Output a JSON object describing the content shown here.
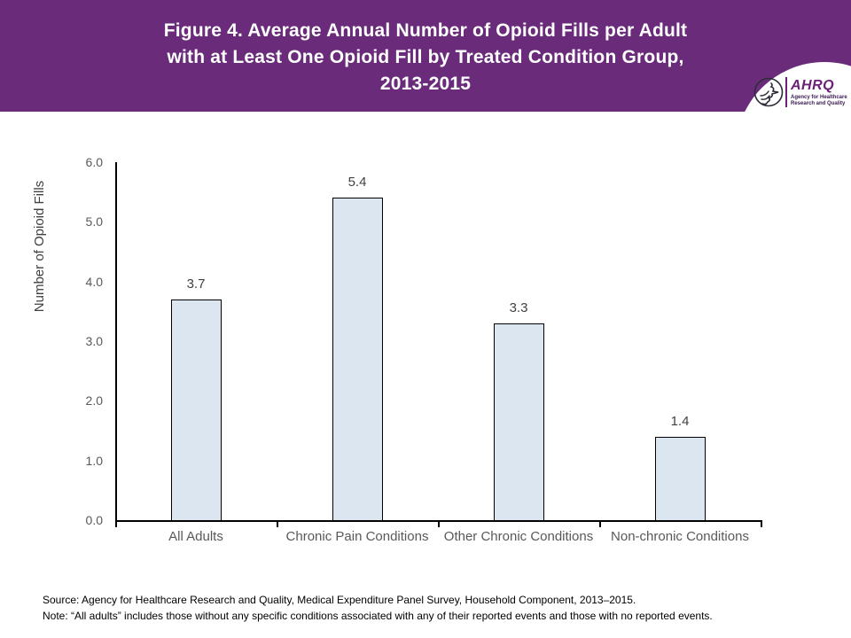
{
  "header": {
    "title": "Figure 4. Average Annual Number of Opioid Fills per Adult\nwith at Least One Opioid Fill by Treated Condition Group,\n2013-2015",
    "logo": {
      "org_abbr": "AHRQ",
      "tagline": "Agency for Healthcare\nResearch and Quality",
      "hhs_icon": "hhs-eagle-icon"
    }
  },
  "chart_data": {
    "type": "bar",
    "title": "Figure 4. Average Annual Number of Opioid Fills per Adult with at Least One Opioid Fill by Treated Condition Group, 2013-2015",
    "categories": [
      "All Adults",
      "Chronic Pain Conditions",
      "Other Chronic Conditions",
      "Non-chronic Conditions"
    ],
    "values": [
      3.7,
      5.4,
      3.3,
      1.4
    ],
    "value_labels": [
      "3.7",
      "5.4",
      "3.3",
      "1.4"
    ],
    "xlabel": "",
    "ylabel": "Number of Opioid Fills",
    "ylim": [
      0,
      6
    ],
    "yticks": [
      "0.0",
      "1.0",
      "2.0",
      "3.0",
      "4.0",
      "5.0",
      "6.0"
    ],
    "grid": false,
    "legend": "none"
  },
  "footer": {
    "source": "Source: Agency for Healthcare Research and Quality, Medical Expenditure Panel Survey, Household Component, 2013–2015.",
    "note": "Note: “All adults” includes those without any specific conditions associated with any of their reported events and those with no reported events."
  },
  "colors": {
    "banner_purple": "#6a2c7a",
    "title_text": "#ffffff",
    "bar_fill": "#dce6f1",
    "bar_border": "#000000",
    "axis_line": "#000000",
    "tick_label": "#595959",
    "value_label": "#404040",
    "logo_purple": "#6d2077"
  }
}
